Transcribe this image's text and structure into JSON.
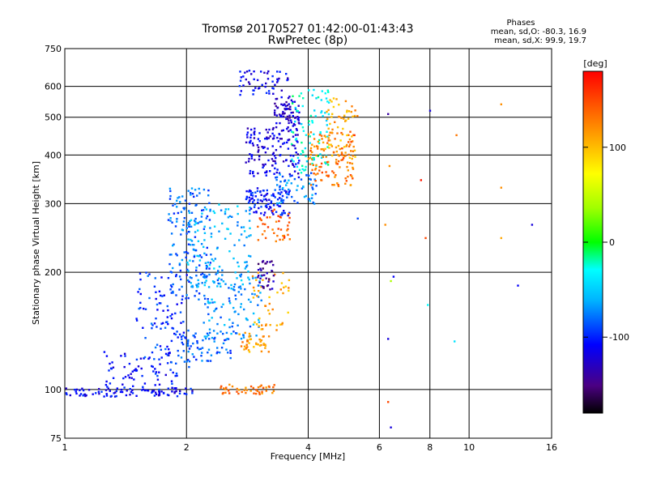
{
  "chart_data": {
    "type": "scatter",
    "title": "Tromsø 20170527 01:42:00-01:43:43",
    "subtitle": "RwPretec (8p)",
    "xlabel": "Frequency [MHz]",
    "ylabel": "Stationary phase Virtual Height [km]",
    "x_scale": "log",
    "y_scale": "log",
    "xlim": [
      1,
      16
    ],
    "ylim": [
      75,
      750
    ],
    "x_ticks": [
      1,
      2,
      4,
      6,
      8,
      10,
      16
    ],
    "y_ticks": [
      75,
      100,
      200,
      300,
      400,
      500,
      600,
      750
    ],
    "grid": true,
    "phases_legend": {
      "heading": "Phases",
      "line_o": "mean, sd,O: -80.3, 16.9",
      "line_x": "mean, sd,X:  99.9, 19.7"
    },
    "colorbar": {
      "label": "[deg]",
      "range": [
        -180,
        180
      ],
      "ticks": [
        100,
        0,
        -100
      ],
      "colormap": "rainbow"
    },
    "clusters": [
      {
        "freq": [
          1.0,
          2.1
        ],
        "height": [
          96,
          101
        ],
        "phase": -110,
        "count": 90
      },
      {
        "freq": [
          1.25,
          1.9
        ],
        "height": [
          100,
          125
        ],
        "phase": -105,
        "count": 70
      },
      {
        "freq": [
          1.5,
          2.05
        ],
        "height": [
          110,
          200
        ],
        "phase": -95,
        "count": 110
      },
      {
        "freq": [
          1.8,
          2.3
        ],
        "height": [
          170,
          330
        ],
        "phase": -80,
        "count": 150
      },
      {
        "freq": [
          1.9,
          2.6
        ],
        "height": [
          118,
          140
        ],
        "phase": -85,
        "count": 60
      },
      {
        "freq": [
          2.0,
          2.9
        ],
        "height": [
          180,
          300
        ],
        "phase": -60,
        "count": 120
      },
      {
        "freq": [
          2.2,
          3.1
        ],
        "height": [
          135,
          200
        ],
        "phase": -70,
        "count": 110
      },
      {
        "freq": [
          2.4,
          3.3
        ],
        "height": [
          97,
          103
        ],
        "phase": 130,
        "count": 45
      },
      {
        "freq": [
          2.7,
          3.2
        ],
        "height": [
          125,
          140
        ],
        "phase": 115,
        "count": 40
      },
      {
        "freq": [
          2.9,
          3.6
        ],
        "height": [
          140,
          200
        ],
        "phase": 110,
        "count": 45
      },
      {
        "freq": [
          3.0,
          3.3
        ],
        "height": [
          180,
          215
        ],
        "phase": -140,
        "count": 35
      },
      {
        "freq": [
          2.8,
          3.6
        ],
        "height": [
          280,
          330
        ],
        "phase": -105,
        "count": 100
      },
      {
        "freq": [
          3.0,
          3.6
        ],
        "height": [
          240,
          290
        ],
        "phase": 140,
        "count": 40
      },
      {
        "freq": [
          2.8,
          3.8
        ],
        "height": [
          350,
          470
        ],
        "phase": -120,
        "count": 140
      },
      {
        "freq": [
          2.7,
          3.6
        ],
        "height": [
          560,
          660
        ],
        "phase": -115,
        "count": 55
      },
      {
        "freq": [
          3.3,
          3.8
        ],
        "height": [
          470,
          560
        ],
        "phase": -125,
        "count": 70
      },
      {
        "freq": [
          3.3,
          4.2
        ],
        "height": [
          300,
          360
        ],
        "phase": -75,
        "count": 60
      },
      {
        "freq": [
          3.6,
          4.5
        ],
        "height": [
          360,
          600
        ],
        "phase": -30,
        "count": 90
      },
      {
        "freq": [
          4.0,
          5.2
        ],
        "height": [
          330,
          460
        ],
        "phase": 130,
        "count": 120
      },
      {
        "freq": [
          4.4,
          5.3
        ],
        "height": [
          390,
          560
        ],
        "phase": 110,
        "count": 60
      }
    ],
    "outliers": [
      {
        "f": 6.3,
        "h": 510,
        "phase": -140
      },
      {
        "f": 6.35,
        "h": 375,
        "phase": 120
      },
      {
        "f": 6.2,
        "h": 265,
        "phase": 120
      },
      {
        "f": 6.4,
        "h": 190,
        "phase": 40
      },
      {
        "f": 6.5,
        "h": 195,
        "phase": -110
      },
      {
        "f": 6.3,
        "h": 135,
        "phase": -120
      },
      {
        "f": 6.3,
        "h": 93,
        "phase": 150
      },
      {
        "f": 6.4,
        "h": 80,
        "phase": -120
      },
      {
        "f": 7.6,
        "h": 345,
        "phase": 170
      },
      {
        "f": 7.8,
        "h": 245,
        "phase": 150
      },
      {
        "f": 7.9,
        "h": 165,
        "phase": -30
      },
      {
        "f": 8.0,
        "h": 520,
        "phase": -120
      },
      {
        "f": 9.3,
        "h": 450,
        "phase": 130
      },
      {
        "f": 9.2,
        "h": 133,
        "phase": -40
      },
      {
        "f": 12.0,
        "h": 540,
        "phase": 120
      },
      {
        "f": 12.0,
        "h": 330,
        "phase": 120
      },
      {
        "f": 12.0,
        "h": 245,
        "phase": 110
      },
      {
        "f": 13.2,
        "h": 185,
        "phase": -110
      },
      {
        "f": 14.3,
        "h": 265,
        "phase": -120
      },
      {
        "f": 5.3,
        "h": 275,
        "phase": -90
      },
      {
        "f": 5.2,
        "h": 450,
        "phase": 160
      }
    ]
  }
}
